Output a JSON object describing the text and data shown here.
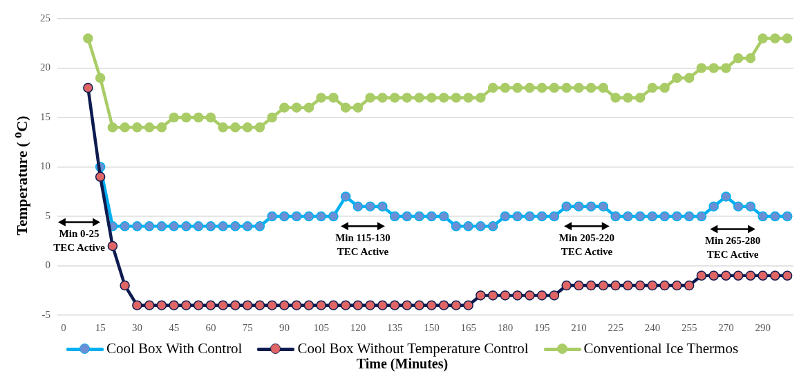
{
  "chart_data": {
    "type": "line",
    "xlabel": "Time (Minutes)",
    "ylabel": "Temperature ( $^{o}$C)",
    "categories": [
      "0",
      null,
      null,
      "15",
      null,
      null,
      "30",
      null,
      null,
      "45",
      null,
      null,
      "60",
      null,
      null,
      "75",
      null,
      null,
      "90",
      null,
      null,
      "105",
      null,
      null,
      "120",
      null,
      null,
      "135",
      null,
      null,
      "150",
      null,
      null,
      "165",
      null,
      null,
      "180",
      null,
      null,
      "195",
      null,
      null,
      "210",
      null,
      null,
      "225",
      null,
      null,
      "240",
      null,
      null,
      "255",
      null,
      null,
      "270",
      null,
      null,
      "290",
      null,
      null
    ],
    "series": [
      {
        "name": "Cool Box With Control",
        "color": "#00b0f0",
        "values": [
          null,
          null,
          null,
          10,
          4,
          4,
          4,
          4,
          4,
          4,
          4,
          4,
          4,
          4,
          4,
          4,
          4,
          5,
          5,
          5,
          5,
          5,
          5,
          7,
          6,
          6,
          6,
          5,
          5,
          5,
          5,
          5,
          4,
          4,
          4,
          4,
          5,
          5,
          5,
          5,
          5,
          6,
          6,
          6,
          6,
          5,
          5,
          5,
          5,
          5,
          5,
          5,
          5,
          6,
          7,
          6,
          6,
          5,
          5,
          5
        ]
      },
      {
        "name": "Cool Box Without Temperature Control",
        "color": "#0d1b4f",
        "values": [
          null,
          null,
          18,
          9,
          2,
          -2,
          -4,
          -4,
          -4,
          -4,
          -4,
          -4,
          -4,
          -4,
          -4,
          -4,
          -4,
          -4,
          -4,
          -4,
          -4,
          -4,
          -4,
          -4,
          -4,
          -4,
          -4,
          -4,
          -4,
          -4,
          -4,
          -4,
          -4,
          -4,
          -3,
          -3,
          -3,
          -3,
          -3,
          -3,
          -3,
          -2,
          -2,
          -2,
          -2,
          -2,
          -2,
          -2,
          -2,
          -2,
          -2,
          -2,
          -1,
          -1,
          -1,
          -1,
          -1,
          -1,
          -1,
          -1
        ]
      },
      {
        "name": "Conventional Ice Thermos",
        "color": "#a9cc66",
        "values": [
          null,
          null,
          23,
          19,
          14,
          14,
          14,
          14,
          14,
          15,
          15,
          15,
          15,
          14,
          14,
          14,
          14,
          15,
          16,
          16,
          16,
          17,
          17,
          16,
          16,
          17,
          17,
          17,
          17,
          17,
          17,
          17,
          17,
          17,
          17,
          18,
          18,
          18,
          18,
          18,
          18,
          18,
          18,
          18,
          18,
          17,
          17,
          17,
          18,
          18,
          19,
          19,
          20,
          20,
          20,
          21,
          21,
          23,
          23,
          23
        ]
      }
    ],
    "ylim": [
      -5,
      25
    ],
    "yticks": [
      -5,
      0,
      5,
      10,
      15,
      20,
      25
    ],
    "grid": "y",
    "legend": "bottom",
    "marker": "circle",
    "line_style": "solid",
    "annotations": [
      "Min 0-25\nTEC Active",
      "Min 115-130\nTEC Active",
      "Min 205-220\nTEC Active",
      "Min 265-280\nTEC Active"
    ]
  }
}
